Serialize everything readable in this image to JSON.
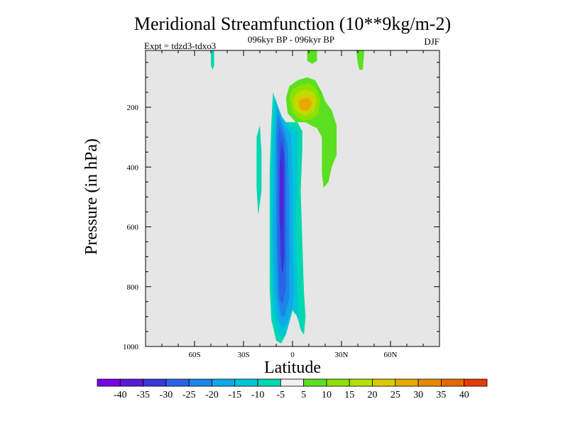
{
  "chart_data": {
    "type": "heatmap",
    "title": "Meridional Streamfunction (10**9kg/m-2)",
    "subtitle": "096kyr BP - 096kyr BP",
    "left_note": "Expt = tdzd3-tdxo3",
    "right_note": "DJF",
    "xlabel": "Latitude",
    "ylabel": "Pressure (in hPa)",
    "xlim": [
      -90,
      90
    ],
    "ylim": [
      1000,
      10
    ],
    "x_ticks": [
      {
        "value": -60,
        "label": "60S"
      },
      {
        "value": -30,
        "label": "30S"
      },
      {
        "value": 0,
        "label": "0"
      },
      {
        "value": 30,
        "label": "30N"
      },
      {
        "value": 60,
        "label": "60N"
      }
    ],
    "y_ticks": [
      {
        "value": 200,
        "label": "200"
      },
      {
        "value": 400,
        "label": "400"
      },
      {
        "value": 600,
        "label": "600"
      },
      {
        "value": 800,
        "label": "800"
      },
      {
        "value": 1000,
        "label": "1000"
      }
    ],
    "colorbar": {
      "labels": [
        "-40",
        "-35",
        "-30",
        "-25",
        "-20",
        "-15",
        "-10",
        "-5",
        "5",
        "10",
        "15",
        "20",
        "25",
        "30",
        "35",
        "40"
      ],
      "colors": [
        "#7a00e6",
        "#5a1ad8",
        "#3838dc",
        "#2b63e6",
        "#1a86e8",
        "#10a8e8",
        "#00c4d8",
        "#00d8b0",
        "#f0f0f0",
        "#5ae021",
        "#8ee000",
        "#b6e000",
        "#d8cc00",
        "#e6aa00",
        "#e68a00",
        "#e66800",
        "#e63c00"
      ]
    },
    "background_color": "#e6e6e6",
    "regions": [
      {
        "name": "Southern cell outer (-5 to -10)",
        "level": -7.5,
        "color_index": 7,
        "outline": [
          [
            -12,
            150
          ],
          [
            -8,
            220
          ],
          [
            -4,
            250
          ],
          [
            3,
            250
          ],
          [
            6,
            280
          ],
          [
            6,
            340
          ],
          [
            5,
            480
          ],
          [
            6,
            650
          ],
          [
            7,
            820
          ],
          [
            8,
            900
          ],
          [
            7,
            960
          ],
          [
            5,
            945
          ],
          [
            3,
            900
          ],
          [
            0,
            880
          ],
          [
            -4,
            960
          ],
          [
            -7,
            990
          ],
          [
            -10,
            980
          ],
          [
            -13,
            910
          ],
          [
            -14,
            800
          ],
          [
            -14,
            600
          ],
          [
            -14,
            420
          ],
          [
            -13,
            260
          ]
        ]
      },
      {
        "name": "Southern cell (-10 to -15)",
        "level": -12.5,
        "color_index": 6,
        "outline": [
          [
            -11,
            165
          ],
          [
            -6,
            240
          ],
          [
            -1,
            265
          ],
          [
            3,
            280
          ],
          [
            3,
            400
          ],
          [
            2,
            600
          ],
          [
            3,
            800
          ],
          [
            4,
            920
          ],
          [
            2,
            890
          ],
          [
            0,
            870
          ],
          [
            -3,
            940
          ],
          [
            -6,
            975
          ],
          [
            -9,
            950
          ],
          [
            -12,
            880
          ],
          [
            -13,
            700
          ],
          [
            -13,
            450
          ],
          [
            -12,
            280
          ]
        ]
      },
      {
        "name": "Southern cell (-15 to -20)",
        "level": -17.5,
        "color_index": 5,
        "outline": [
          [
            -10,
            190
          ],
          [
            -5,
            260
          ],
          [
            -1,
            290
          ],
          [
            0,
            450
          ],
          [
            0,
            650
          ],
          [
            1,
            820
          ],
          [
            0,
            870
          ],
          [
            -3,
            920
          ],
          [
            -6,
            940
          ],
          [
            -9,
            910
          ],
          [
            -11,
            820
          ],
          [
            -12,
            600
          ],
          [
            -11,
            350
          ]
        ]
      },
      {
        "name": "Southern cell (-20 to -25)",
        "level": -22.5,
        "color_index": 4,
        "outline": [
          [
            -9,
            220
          ],
          [
            -5,
            280
          ],
          [
            -3,
            330
          ],
          [
            -2,
            500
          ],
          [
            -2,
            700
          ],
          [
            -2,
            840
          ],
          [
            -5,
            900
          ],
          [
            -7,
            900
          ],
          [
            -9,
            840
          ],
          [
            -10,
            640
          ],
          [
            -10,
            420
          ],
          [
            -10,
            280
          ]
        ]
      },
      {
        "name": "Southern cell (-25 to -30)",
        "level": -27.5,
        "color_index": 3,
        "outline": [
          [
            -8,
            260
          ],
          [
            -5,
            310
          ],
          [
            -4,
            420
          ],
          [
            -4,
            640
          ],
          [
            -4,
            800
          ],
          [
            -6,
            860
          ],
          [
            -8,
            840
          ],
          [
            -9,
            660
          ],
          [
            -9,
            420
          ],
          [
            -9,
            300
          ]
        ]
      },
      {
        "name": "Southern cell (-30 to -35)",
        "level": -32.5,
        "color_index": 2,
        "outline": [
          [
            -7,
            310
          ],
          [
            -5,
            360
          ],
          [
            -5,
            500
          ],
          [
            -5,
            700
          ],
          [
            -6,
            760
          ],
          [
            -7,
            730
          ],
          [
            -8,
            560
          ],
          [
            -8,
            400
          ]
        ]
      },
      {
        "name": "Southern cell core (-35 to -40)",
        "level": -37.5,
        "color_index": 1,
        "outline": [
          [
            -7,
            370
          ],
          [
            -6,
            420
          ],
          [
            -6,
            560
          ],
          [
            -7,
            620
          ],
          [
            -7.5,
            540
          ],
          [
            -7.5,
            420
          ]
        ]
      },
      {
        "name": "Northern cell (5 to 10)",
        "level": 7.5,
        "color_index": 9,
        "outline": [
          [
            -4,
            170
          ],
          [
            -2,
            130
          ],
          [
            3,
            110
          ],
          [
            9,
            100
          ],
          [
            14,
            110
          ],
          [
            18,
            150
          ],
          [
            20,
            180
          ],
          [
            24,
            210
          ],
          [
            27,
            260
          ],
          [
            27,
            360
          ],
          [
            24,
            400
          ],
          [
            22,
            450
          ],
          [
            19,
            470
          ],
          [
            18,
            420
          ],
          [
            18,
            300
          ],
          [
            15,
            270
          ],
          [
            11,
            260
          ],
          [
            8,
            250
          ],
          [
            2,
            250
          ],
          [
            -3,
            220
          ]
        ]
      },
      {
        "name": "Northern cell (10 to 15)",
        "level": 12.5,
        "color_index": 10,
        "outline": [
          [
            -2,
            170
          ],
          [
            0,
            140
          ],
          [
            5,
            125
          ],
          [
            10,
            120
          ],
          [
            15,
            140
          ],
          [
            17,
            175
          ],
          [
            16,
            220
          ],
          [
            12,
            240
          ],
          [
            7,
            245
          ],
          [
            3,
            235
          ],
          [
            0,
            215
          ]
        ]
      },
      {
        "name": "Northern cell (15 to 20)",
        "level": 17.5,
        "color_index": 11,
        "outline": [
          [
            0,
            175
          ],
          [
            3,
            150
          ],
          [
            8,
            140
          ],
          [
            13,
            150
          ],
          [
            15,
            180
          ],
          [
            13,
            215
          ],
          [
            8,
            230
          ],
          [
            4,
            220
          ],
          [
            1,
            205
          ]
        ]
      },
      {
        "name": "Northern cell (20 to 25)",
        "level": 22.5,
        "color_index": 12,
        "outline": [
          [
            2,
            175
          ],
          [
            5,
            160
          ],
          [
            9,
            155
          ],
          [
            13,
            165
          ],
          [
            14,
            190
          ],
          [
            11,
            210
          ],
          [
            7,
            220
          ],
          [
            4,
            210
          ]
        ]
      },
      {
        "name": "Northern cell core (25 to 30)",
        "level": 27.5,
        "color_index": 13,
        "outline": [
          [
            4,
            180
          ],
          [
            7,
            170
          ],
          [
            10,
            170
          ],
          [
            12,
            185
          ],
          [
            11,
            200
          ],
          [
            9,
            210
          ],
          [
            6,
            210
          ],
          [
            4,
            198
          ]
        ]
      },
      {
        "name": "Stratospheric patch 45S",
        "level": -7.5,
        "color_index": 7,
        "outline": [
          [
            -50,
            10
          ],
          [
            -48,
            10
          ],
          [
            -48,
            60
          ],
          [
            -49,
            75
          ],
          [
            -50,
            60
          ]
        ]
      },
      {
        "name": "Stratospheric patch 10N",
        "level": 7.5,
        "color_index": 9,
        "outline": [
          [
            9,
            10
          ],
          [
            15,
            10
          ],
          [
            15,
            45
          ],
          [
            12,
            55
          ],
          [
            9,
            45
          ]
        ]
      },
      {
        "name": "Stratospheric patch 42N",
        "level": 7.5,
        "color_index": 9,
        "outline": [
          [
            39,
            10
          ],
          [
            44,
            10
          ],
          [
            43,
            75
          ],
          [
            41,
            75
          ],
          [
            40,
            55
          ]
        ]
      },
      {
        "name": "Southern subtropical patch",
        "level": -7.5,
        "color_index": 7,
        "outline": [
          [
            -22,
            300
          ],
          [
            -20,
            260
          ],
          [
            -19,
            350
          ],
          [
            -19,
            480
          ],
          [
            -21,
            560
          ],
          [
            -22,
            470
          ]
        ]
      }
    ]
  }
}
